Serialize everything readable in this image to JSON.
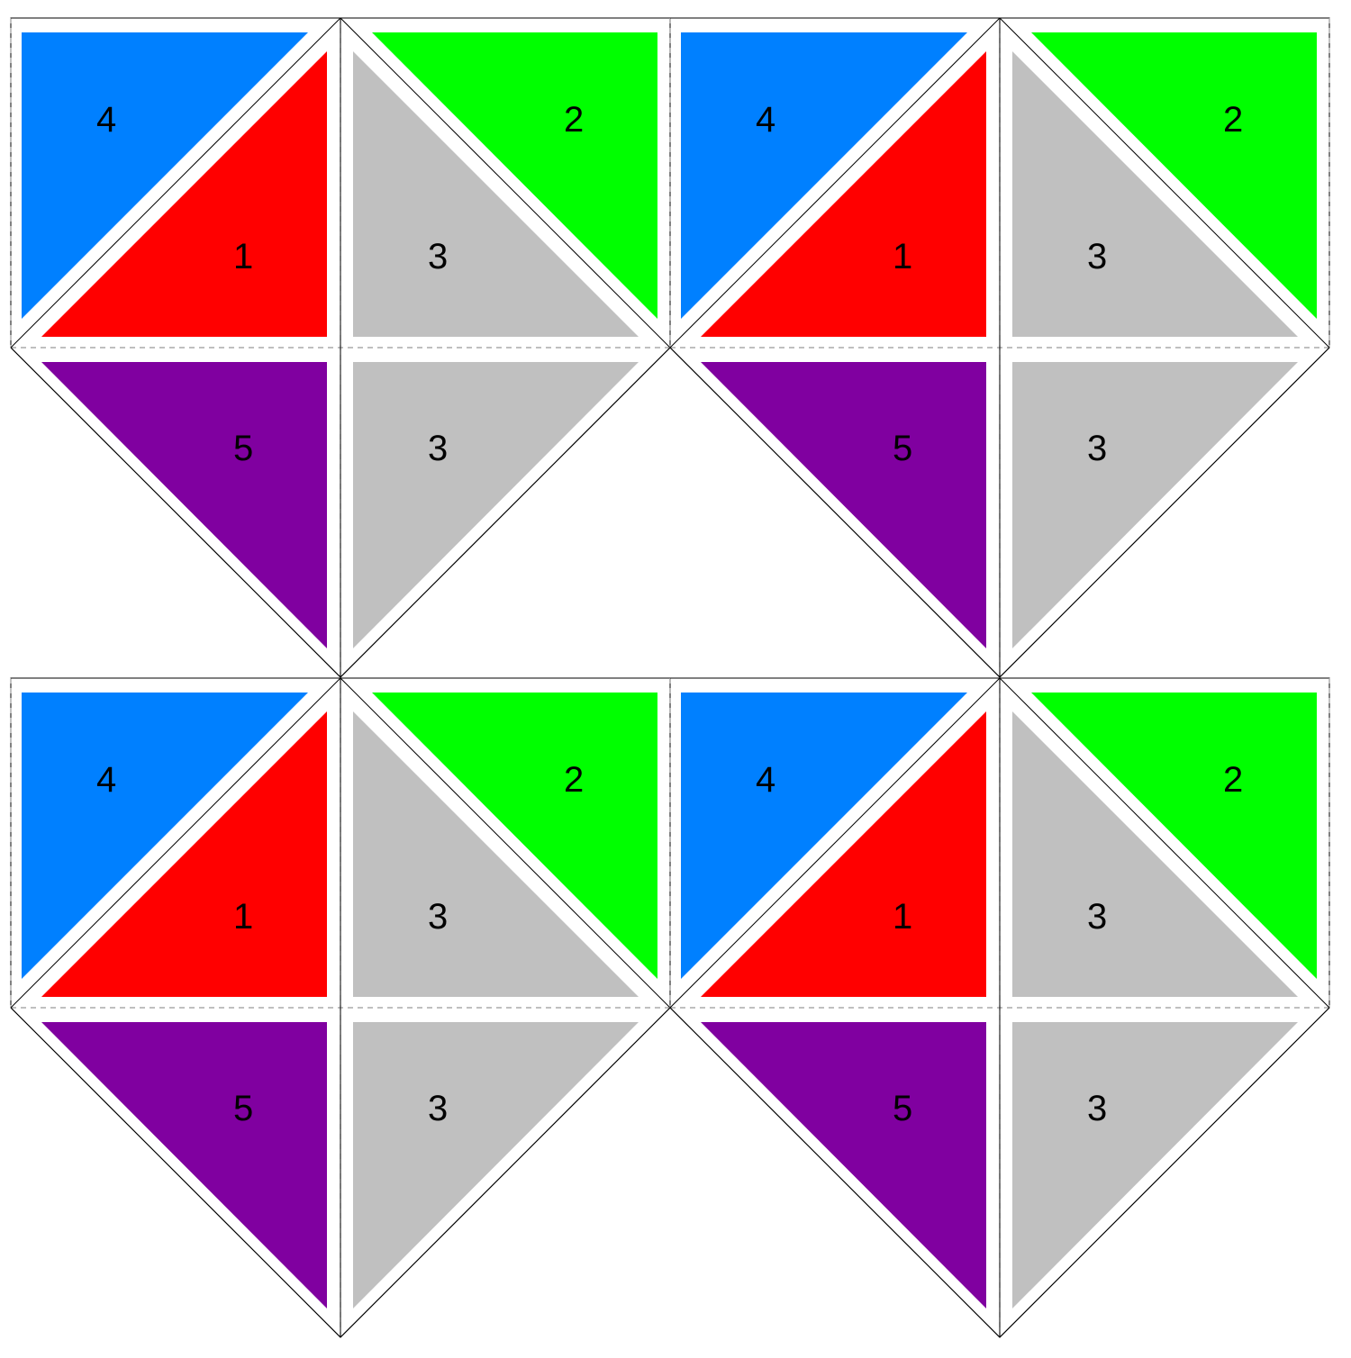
{
  "colors": {
    "1": "#ff0000",
    "2": "#00ff00",
    "3": "#c0c0c0",
    "4": "#0080ff",
    "5": "#8000a0"
  },
  "module_labels": {
    "blue": "4",
    "red": "1",
    "green": "2",
    "gray_top": "3",
    "purple": "5",
    "gray_bottom": "3"
  },
  "modules": [
    {
      "id": "module-top-left"
    },
    {
      "id": "module-top-right"
    },
    {
      "id": "module-bottom-left"
    },
    {
      "id": "module-bottom-right"
    }
  ]
}
